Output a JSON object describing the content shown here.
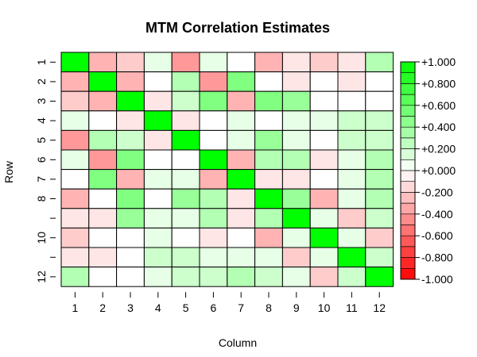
{
  "chart_data": {
    "type": "heatmap",
    "title": "MTM Correlation Estimates",
    "xlabel": "Column",
    "ylabel": "Row",
    "x_tick_labels": [
      "1",
      "2",
      "3",
      "4",
      "5",
      "6",
      "7",
      "8",
      "9",
      "10",
      "11",
      "12"
    ],
    "y_tick_labels": [
      "1",
      "2",
      "3",
      "4",
      "5",
      "6",
      "7",
      "8",
      "",
      "10",
      "",
      "12"
    ],
    "color_scale": {
      "min": -1.0,
      "max": 1.0,
      "step": 0.1,
      "negative_color": "#ff0000",
      "positive_color": "#00ff00",
      "zero_color": "#ffffff",
      "ticks": [
        "+1.000",
        "+0.800",
        "+0.600",
        "+0.400",
        "+0.200",
        "+0.000",
        "-0.200",
        "-0.400",
        "-0.600",
        "-0.800",
        "-1.000"
      ]
    },
    "values": [
      [
        1.0,
        -0.3,
        -0.2,
        0.1,
        -0.4,
        0.1,
        0.0,
        -0.3,
        -0.1,
        -0.2,
        -0.1,
        0.3
      ],
      [
        -0.3,
        1.0,
        -0.3,
        0.0,
        0.3,
        -0.4,
        0.5,
        0.0,
        -0.1,
        0.0,
        -0.1,
        0.0
      ],
      [
        -0.2,
        -0.3,
        1.0,
        -0.1,
        0.2,
        0.5,
        -0.3,
        0.5,
        0.4,
        0.0,
        0.0,
        0.0
      ],
      [
        0.1,
        0.0,
        -0.1,
        1.0,
        -0.1,
        0.0,
        0.1,
        0.0,
        0.1,
        0.1,
        0.2,
        0.2
      ],
      [
        -0.4,
        0.3,
        0.2,
        -0.1,
        1.0,
        0.0,
        0.1,
        0.4,
        0.1,
        0.0,
        0.2,
        0.2
      ],
      [
        0.1,
        -0.4,
        0.5,
        0.0,
        0.0,
        1.0,
        -0.3,
        0.3,
        0.3,
        -0.1,
        0.1,
        0.3
      ],
      [
        0.0,
        0.5,
        -0.3,
        0.1,
        0.1,
        -0.3,
        1.0,
        -0.1,
        -0.1,
        0.0,
        0.1,
        0.3
      ],
      [
        -0.3,
        0.0,
        0.5,
        0.0,
        0.4,
        0.3,
        -0.1,
        1.0,
        0.4,
        -0.3,
        0.1,
        0.3
      ],
      [
        -0.1,
        -0.1,
        0.4,
        0.1,
        0.1,
        0.3,
        -0.1,
        0.3,
        1.0,
        0.1,
        -0.2,
        0.2
      ],
      [
        -0.2,
        0.0,
        0.0,
        0.1,
        0.0,
        -0.1,
        0.0,
        -0.3,
        0.1,
        1.0,
        0.1,
        -0.2
      ],
      [
        -0.1,
        -0.1,
        0.0,
        0.2,
        0.2,
        0.1,
        0.1,
        0.1,
        -0.2,
        0.1,
        1.0,
        0.2
      ],
      [
        0.3,
        0.0,
        0.0,
        0.1,
        0.2,
        0.2,
        0.3,
        0.2,
        0.1,
        -0.2,
        0.2,
        1.0
      ]
    ]
  }
}
